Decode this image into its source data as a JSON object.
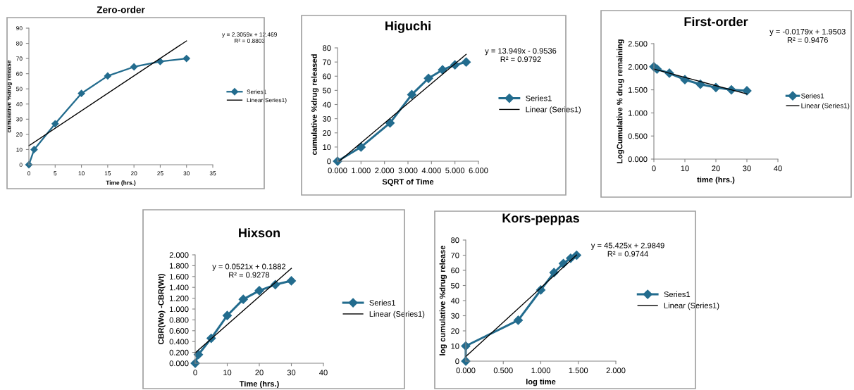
{
  "chart_data": [
    {
      "type": "line",
      "title": "Zero-order",
      "xlabel": "Time (hrs.)",
      "ylabel": "cumulative %drug release",
      "xlim": [
        0,
        35
      ],
      "xticks": [
        0,
        5,
        10,
        15,
        20,
        25,
        30,
        35
      ],
      "ylim": [
        0,
        90
      ],
      "yticks": [
        0,
        10,
        20,
        30,
        40,
        50,
        60,
        70,
        80,
        90
      ],
      "grid": false,
      "legend": "right",
      "annotations": [
        "y = 2.3059x + 12.469\nR² = 0.8803"
      ],
      "series": [
        {
          "name": "Series1",
          "color": "#236c8e",
          "marker": "diamond",
          "x": [
            0,
            1,
            5,
            10,
            15,
            20,
            25,
            30
          ],
          "values": [
            0,
            10,
            27,
            47,
            58.5,
            64.5,
            68,
            70
          ]
        },
        {
          "name": "Linear(Series1)",
          "color": "#000000",
          "marker": "none",
          "x": [
            0,
            30
          ],
          "values": [
            12.5,
            81.6
          ]
        }
      ]
    },
    {
      "type": "line",
      "title": "Higuchi",
      "xlabel": "SQRT of Time",
      "ylabel": "cumulative %drug released",
      "xlim": [
        0,
        6
      ],
      "xticks": [
        {
          "value": 0,
          "label": "0.000"
        },
        {
          "value": 1,
          "label": "1.000"
        },
        {
          "value": 2,
          "label": "2.000"
        },
        {
          "value": 3,
          "label": "3.000"
        },
        {
          "value": 4,
          "label": "4.000"
        },
        {
          "value": 5,
          "label": "5.000"
        },
        {
          "value": 6,
          "label": "6.000"
        }
      ],
      "ylim": [
        0,
        80
      ],
      "yticks": [
        0,
        10,
        20,
        30,
        40,
        50,
        60,
        70,
        80
      ],
      "grid": false,
      "legend": "right",
      "annotations": [
        "y = 13.949x - 0.9536\nR² = 0.9792"
      ],
      "series": [
        {
          "name": "Series1",
          "color": "#236c8e",
          "marker": "diamond",
          "x": [
            0,
            1,
            2.236,
            3.162,
            3.873,
            4.472,
            5,
            5.477
          ],
          "values": [
            0,
            10,
            27,
            47,
            58.5,
            64.5,
            68,
            70
          ]
        },
        {
          "name": "Linear (Series1)",
          "color": "#000000",
          "marker": "none",
          "x": [
            0.07,
            5.477
          ],
          "values": [
            0,
            75.4
          ]
        }
      ]
    },
    {
      "type": "line",
      "title": "First-order",
      "xlabel": "time (hrs.)",
      "ylabel": "LogCumulative % drug remaining",
      "xlim": [
        0,
        40
      ],
      "xticks": [
        0,
        10,
        20,
        30,
        40
      ],
      "ylim": [
        0,
        2.5
      ],
      "yticks": [
        {
          "value": 0,
          "label": "0.000"
        },
        {
          "value": 0.5,
          "label": "0.500"
        },
        {
          "value": 1,
          "label": "1.000"
        },
        {
          "value": 1.5,
          "label": "1.500"
        },
        {
          "value": 2,
          "label": "2.000"
        },
        {
          "value": 2.5,
          "label": "2.500"
        }
      ],
      "grid": false,
      "legend": "right",
      "annotations": [
        "y = -0.0179x + 1.9503\nR² = 0.9476"
      ],
      "series": [
        {
          "name": "Series1",
          "color": "#236c8e",
          "marker": "diamond",
          "x": [
            0,
            1,
            5,
            10,
            15,
            20,
            25,
            30
          ],
          "values": [
            2.0,
            1.95,
            1.86,
            1.72,
            1.62,
            1.55,
            1.5,
            1.48
          ]
        },
        {
          "name": "Linear (Series1)",
          "color": "#000000",
          "marker": "none",
          "x": [
            0,
            30
          ],
          "values": [
            1.95,
            1.41
          ]
        }
      ]
    },
    {
      "type": "line",
      "title": "Hixson",
      "xlabel": "Time (hrs.)",
      "ylabel": "CBR(Wo) -CBR(Wt)",
      "xlim": [
        0,
        40
      ],
      "xticks": [
        0,
        10,
        20,
        30,
        40
      ],
      "ylim": [
        0,
        2
      ],
      "yticks": [
        {
          "value": 0,
          "label": "0.000"
        },
        {
          "value": 0.2,
          "label": "0.200"
        },
        {
          "value": 0.4,
          "label": "0.400"
        },
        {
          "value": 0.6,
          "label": "0.600"
        },
        {
          "value": 0.8,
          "label": "0.800"
        },
        {
          "value": 1.0,
          "label": "1.000"
        },
        {
          "value": 1.2,
          "label": "1.200"
        },
        {
          "value": 1.4,
          "label": "1.400"
        },
        {
          "value": 1.6,
          "label": "1.600"
        },
        {
          "value": 1.8,
          "label": "1.800"
        },
        {
          "value": 2.0,
          "label": "2.000"
        }
      ],
      "grid": false,
      "legend": "right",
      "annotations": [
        "y = 0.0521x + 0.1882\nR² = 0.9278"
      ],
      "series": [
        {
          "name": "Series1",
          "color": "#236c8e",
          "marker": "diamond",
          "x": [
            0,
            1,
            5,
            10,
            15,
            20,
            25,
            30
          ],
          "values": [
            0,
            0.16,
            0.46,
            0.88,
            1.18,
            1.34,
            1.45,
            1.52
          ]
        },
        {
          "name": "Linear (Series1)",
          "color": "#000000",
          "marker": "none",
          "x": [
            0,
            30
          ],
          "values": [
            0.19,
            1.75
          ]
        }
      ]
    },
    {
      "type": "line",
      "title": "Kors-peppas",
      "xlabel": "log time",
      "ylabel": "log cumulative %drug release",
      "xlim": [
        0,
        2
      ],
      "xticks": [
        {
          "value": 0,
          "label": "0.000"
        },
        {
          "value": 0.5,
          "label": "0.500"
        },
        {
          "value": 1,
          "label": "1.000"
        },
        {
          "value": 1.5,
          "label": "1.500"
        },
        {
          "value": 2,
          "label": "2.000"
        }
      ],
      "ylim": [
        0,
        80
      ],
      "yticks": [
        0,
        10,
        20,
        30,
        40,
        50,
        60,
        70,
        80
      ],
      "grid": false,
      "legend": "right",
      "annotations": [
        "y = 45.425x + 2.9849\nR² = 0.9744"
      ],
      "series": [
        {
          "name": "Series1",
          "color": "#236c8e",
          "marker": "diamond",
          "x": [
            0,
            0,
            0.699,
            1,
            1.176,
            1.301,
            1.398,
            1.477
          ],
          "values": [
            0,
            10,
            27,
            47,
            58.5,
            64.5,
            68,
            70
          ]
        },
        {
          "name": "Linear (Series1)",
          "color": "#000000",
          "marker": "none",
          "x": [
            0,
            1.477
          ],
          "values": [
            3,
            70.1
          ]
        }
      ]
    }
  ]
}
